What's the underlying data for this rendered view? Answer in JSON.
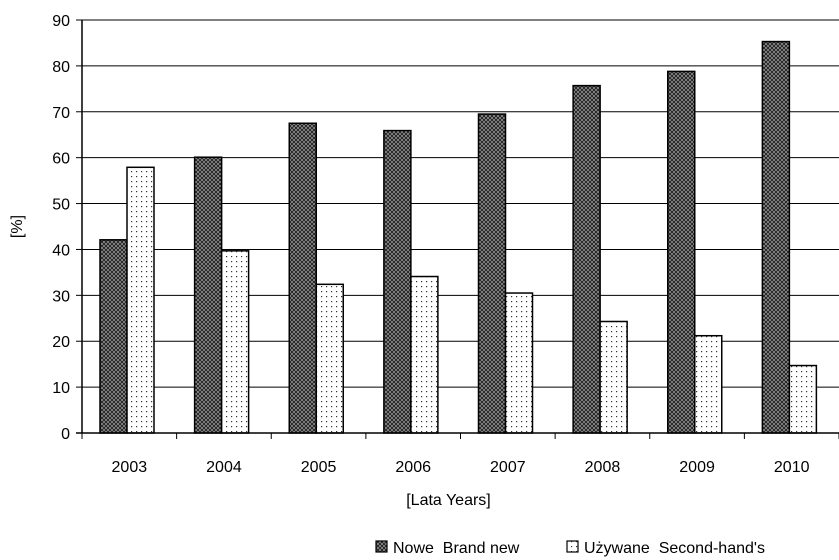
{
  "chart_data": {
    "type": "bar",
    "xlabel": "[Lata Years]",
    "ylabel": "[%]",
    "ylim": [
      0,
      90
    ],
    "ytick_step": 10,
    "grid": true,
    "legend_position": "bottom",
    "categories": [
      "2003",
      "2004",
      "2005",
      "2006",
      "2007",
      "2008",
      "2009",
      "2010"
    ],
    "series": [
      {
        "name": "Nowe  Brand new",
        "values": [
          42.1,
          60.1,
          67.5,
          65.9,
          69.5,
          75.7,
          78.8,
          85.3
        ],
        "pattern": "crosshatch"
      },
      {
        "name": "Używane  Second-hand's",
        "values": [
          57.9,
          39.7,
          32.4,
          34.1,
          30.5,
          24.3,
          21.2,
          14.7
        ],
        "pattern": "dots"
      }
    ]
  }
}
